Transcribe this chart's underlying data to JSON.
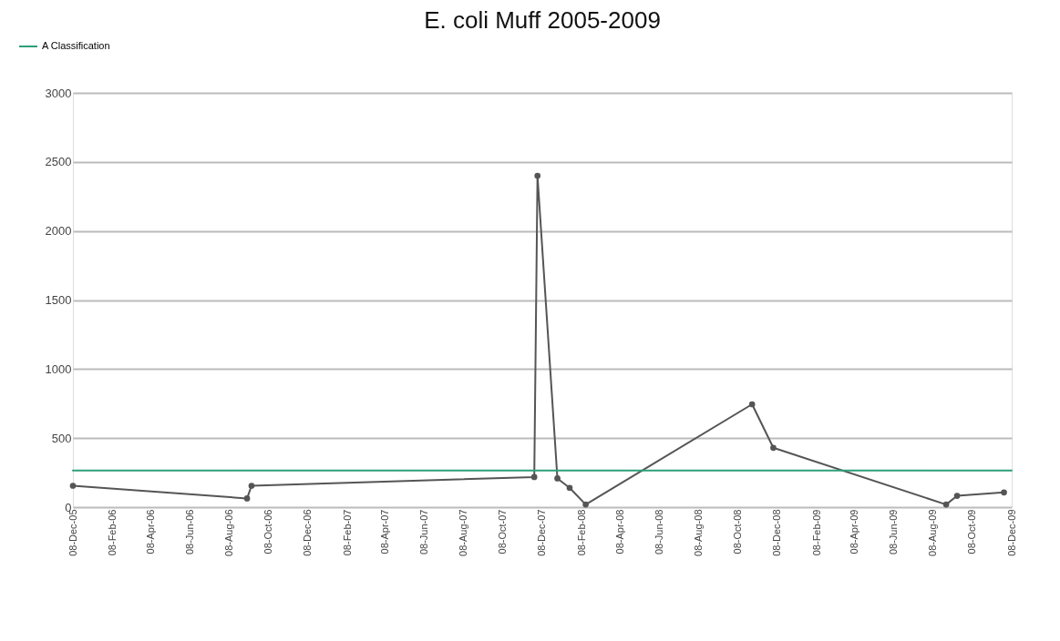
{
  "chart_data": {
    "type": "line",
    "title": "E. coli Muff 2005-2009",
    "x": [
      "2005-12-08",
      "2006-09-05",
      "2006-09-12",
      "2007-11-26",
      "2007-12-01",
      "2008-01-01",
      "2008-01-20",
      "2008-02-14",
      "2008-10-30",
      "2008-12-02",
      "2009-08-28",
      "2009-09-14",
      "2009-11-26"
    ],
    "series": [
      {
        "color": "#555555",
        "values": [
          155,
          63,
          155,
          218,
          2400,
          208,
          140,
          19,
          745,
          430,
          19,
          82,
          107
        ],
        "marker": "circle"
      },
      {
        "name": "A Classification",
        "color": "#2e9e7a",
        "x": [
          "2005-12-08",
          "2009-12-08"
        ],
        "values": [
          265,
          265
        ],
        "marker": "none"
      }
    ],
    "xlim": [
      "2005-12-08",
      "2009-12-08"
    ],
    "xticks": [
      {
        "value": "2005-12-08",
        "label": "08-Dec-05"
      },
      {
        "value": "2006-02-08",
        "label": "08-Feb-06"
      },
      {
        "value": "2006-04-08",
        "label": "08-Apr-06"
      },
      {
        "value": "2006-06-08",
        "label": "08-Jun-06"
      },
      {
        "value": "2006-08-08",
        "label": "08-Aug-06"
      },
      {
        "value": "2006-10-08",
        "label": "08-Oct-06"
      },
      {
        "value": "2006-12-08",
        "label": "08-Dec-06"
      },
      {
        "value": "2007-02-08",
        "label": "08-Feb-07"
      },
      {
        "value": "2007-04-08",
        "label": "08-Apr-07"
      },
      {
        "value": "2007-06-08",
        "label": "08-Jun-07"
      },
      {
        "value": "2007-08-08",
        "label": "08-Aug-07"
      },
      {
        "value": "2007-10-08",
        "label": "08-Oct-07"
      },
      {
        "value": "2007-12-08",
        "label": "08-Dec-07"
      },
      {
        "value": "2008-02-08",
        "label": "08-Feb-08"
      },
      {
        "value": "2008-04-08",
        "label": "08-Apr-08"
      },
      {
        "value": "2008-06-08",
        "label": "08-Jun-08"
      },
      {
        "value": "2008-08-08",
        "label": "08-Aug-08"
      },
      {
        "value": "2008-10-08",
        "label": "08-Oct-08"
      },
      {
        "value": "2008-12-08",
        "label": "08-Dec-08"
      },
      {
        "value": "2009-02-08",
        "label": "08-Feb-09"
      },
      {
        "value": "2009-04-08",
        "label": "08-Apr-09"
      },
      {
        "value": "2009-06-08",
        "label": "08-Jun-09"
      },
      {
        "value": "2009-08-08",
        "label": "08-Aug-09"
      },
      {
        "value": "2009-10-08",
        "label": "08-Oct-09"
      },
      {
        "value": "2009-12-08",
        "label": "08-Dec-09"
      }
    ],
    "ylim": [
      0,
      3000
    ],
    "yticks": [
      0,
      500,
      1000,
      1500,
      2000,
      2500,
      3000
    ],
    "grid": "y",
    "legend": "top left",
    "line_style": "solid"
  }
}
